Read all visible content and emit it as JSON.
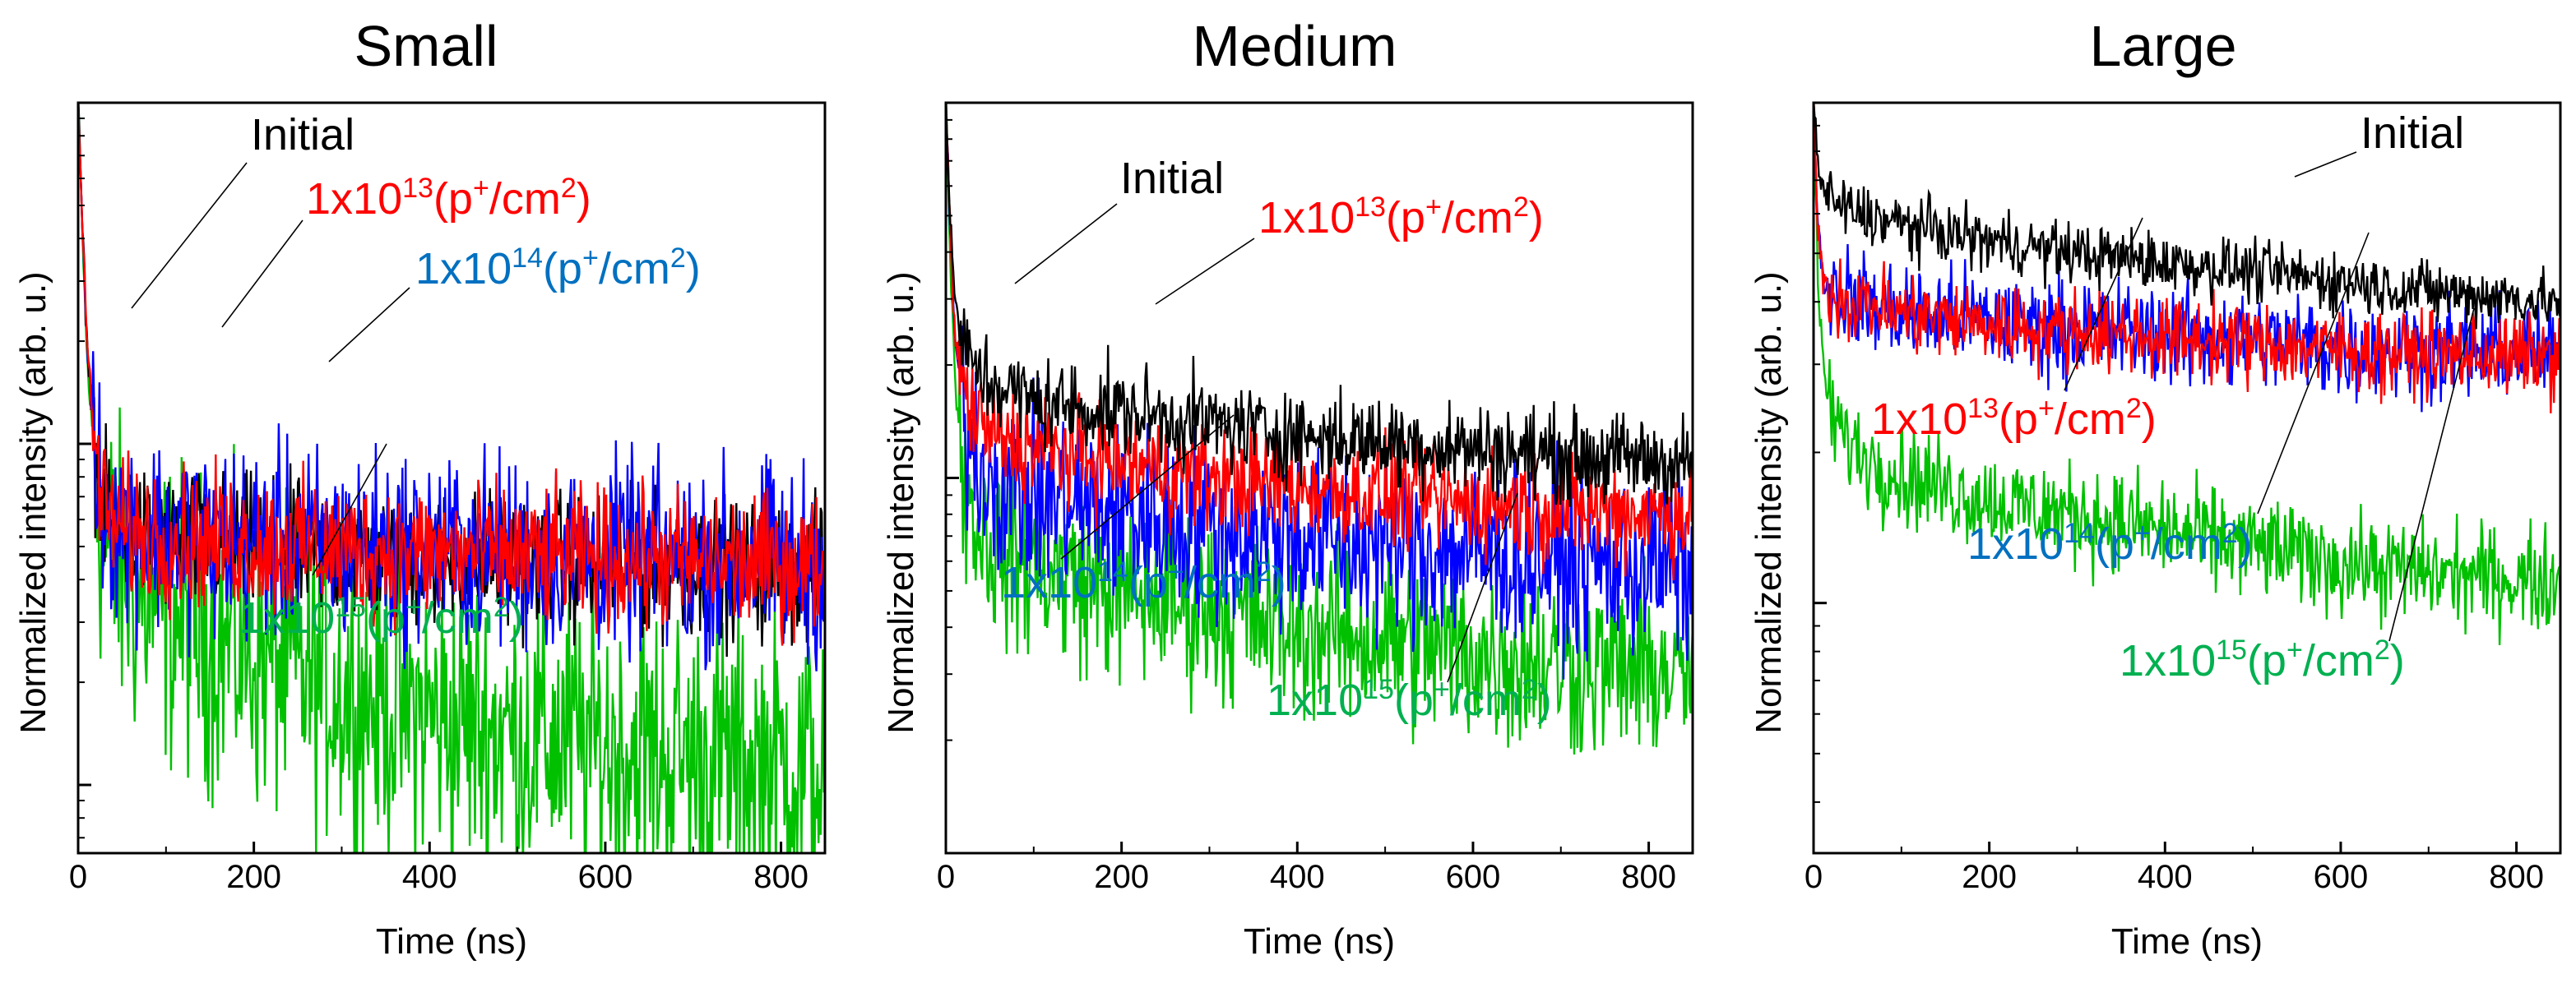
{
  "colors": {
    "Initial": "#000000",
    "1x10^13": "#ff0000",
    "1x10^14": "#0000ff",
    "1x10^15": "#00c000",
    "label_1x10^14": "#0070c0",
    "label_1x10^15": "#00b050"
  },
  "chart_data": [
    {
      "type": "line",
      "title": "Small",
      "xlabel": "Time (ns)",
      "ylabel": "Normalized intensity (arb. u.)",
      "xlim": [
        0,
        850
      ],
      "x_ticks": [
        "0",
        "200",
        "400",
        "600",
        "800"
      ],
      "yscale": "log",
      "y_tick_labels": "none",
      "x": [
        0,
        5,
        10,
        20,
        30,
        50,
        100,
        200,
        300,
        400,
        500,
        600,
        700,
        850
      ],
      "series": [
        {
          "name": "Initial",
          "values": [
            1.0,
            0.42,
            0.2,
            0.09,
            0.064,
            0.056,
            0.052,
            0.05,
            0.048,
            0.046,
            0.045,
            0.044,
            0.043,
            0.042
          ]
        },
        {
          "name": "1x10^13(p+/cm^2)",
          "values": [
            1.0,
            0.42,
            0.2,
            0.09,
            0.064,
            0.056,
            0.053,
            0.051,
            0.049,
            0.048,
            0.047,
            0.046,
            0.045,
            0.044
          ]
        },
        {
          "name": "1x10^14(p+/cm^2)",
          "values": [
            1.0,
            0.42,
            0.2,
            0.09,
            0.064,
            0.057,
            0.054,
            0.052,
            0.05,
            0.049,
            0.048,
            0.047,
            0.046,
            0.045
          ]
        },
        {
          "name": "1x10^15(p+/cm^2)",
          "values": [
            1.0,
            0.4,
            0.18,
            0.075,
            0.05,
            0.04,
            0.032,
            0.024,
            0.019,
            0.016,
            0.014,
            0.013,
            0.012,
            0.011
          ]
        }
      ],
      "annotations": [
        "Initial",
        "1x10^13(p+/cm^2)",
        "1x10^14(p+/cm^2)",
        "1x10^15(p+/cm^2)"
      ]
    },
    {
      "type": "line",
      "title": "Medium",
      "xlabel": "Time (ns)",
      "ylabel": "Normalized intensity (arb. u.)",
      "xlim": [
        0,
        850
      ],
      "x_ticks": [
        "0",
        "200",
        "400",
        "600",
        "800"
      ],
      "yscale": "log",
      "y_tick_labels": "none",
      "x": [
        0,
        5,
        10,
        20,
        30,
        50,
        100,
        200,
        300,
        400,
        500,
        600,
        700,
        850
      ],
      "series": [
        {
          "name": "Initial",
          "values": [
            1.0,
            0.5,
            0.3,
            0.22,
            0.2,
            0.18,
            0.16,
            0.15,
            0.14,
            0.13,
            0.125,
            0.12,
            0.115,
            0.11
          ]
        },
        {
          "name": "1x10^13(p+/cm^2)",
          "values": [
            1.0,
            0.45,
            0.25,
            0.17,
            0.15,
            0.13,
            0.12,
            0.11,
            0.1,
            0.095,
            0.09,
            0.086,
            0.083,
            0.08
          ]
        },
        {
          "name": "1x10^14(p+/cm^2)",
          "values": [
            1.0,
            0.45,
            0.24,
            0.15,
            0.12,
            0.1,
            0.09,
            0.08,
            0.075,
            0.07,
            0.066,
            0.063,
            0.06,
            0.057
          ]
        },
        {
          "name": "1x10^15(p+/cm^2)",
          "values": [
            1.0,
            0.4,
            0.19,
            0.1,
            0.08,
            0.067,
            0.058,
            0.05,
            0.045,
            0.04,
            0.037,
            0.034,
            0.032,
            0.03
          ]
        }
      ],
      "annotations": [
        "Initial",
        "1x10^13(p+/cm^2)",
        "1x10^14(p+/cm^2)",
        "1x10^15(p+/cm^2)"
      ]
    },
    {
      "type": "line",
      "title": "Large",
      "xlabel": "Time (ns)",
      "ylabel": "Normalized intensity (arb. u.)",
      "xlim": [
        0,
        850
      ],
      "x_ticks": [
        "0",
        "200",
        "400",
        "600",
        "800"
      ],
      "yscale": "log",
      "y_tick_labels": "none",
      "x": [
        0,
        5,
        10,
        20,
        30,
        50,
        100,
        200,
        300,
        400,
        500,
        600,
        700,
        850
      ],
      "series": [
        {
          "name": "Initial",
          "values": [
            1.0,
            0.75,
            0.68,
            0.64,
            0.62,
            0.6,
            0.57,
            0.53,
            0.5,
            0.48,
            0.46,
            0.44,
            0.42,
            0.4
          ]
        },
        {
          "name": "1x10^13(p+/cm^2)",
          "values": [
            1.0,
            0.58,
            0.45,
            0.42,
            0.41,
            0.4,
            0.38,
            0.36,
            0.35,
            0.34,
            0.33,
            0.32,
            0.315,
            0.31
          ]
        },
        {
          "name": "1x10^14(p+/cm^2)",
          "values": [
            1.0,
            0.58,
            0.45,
            0.42,
            0.41,
            0.4,
            0.38,
            0.365,
            0.355,
            0.345,
            0.335,
            0.325,
            0.32,
            0.315
          ]
        },
        {
          "name": "1x10^15(p+/cm^2)",
          "values": [
            1.0,
            0.45,
            0.3,
            0.24,
            0.22,
            0.2,
            0.18,
            0.16,
            0.15,
            0.14,
            0.13,
            0.12,
            0.115,
            0.11
          ]
        }
      ],
      "annotations": [
        "Initial",
        "1x10^13(p+/cm^2)",
        "1x10^14(p+/cm^2)",
        "1x10^15(p+/cm^2)"
      ]
    }
  ]
}
